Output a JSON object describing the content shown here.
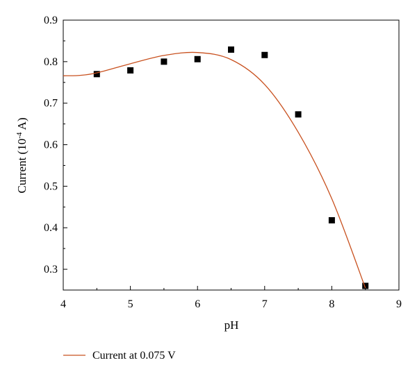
{
  "chart_data": {
    "type": "scatter",
    "xlabel": "pH",
    "ylabel_main": "Current (10",
    "ylabel_exp": "-4",
    "ylabel_tail": " A)",
    "xlim": [
      4,
      9
    ],
    "ylim": [
      0.25,
      0.9
    ],
    "x_ticks": [
      4,
      5,
      6,
      7,
      8,
      9
    ],
    "y_ticks": [
      0.3,
      0.4,
      0.5,
      0.6,
      0.7,
      0.8,
      0.9
    ],
    "grid": false,
    "legend_position": "bottom-left",
    "series": [
      {
        "kind": "markers",
        "color": "#000000",
        "x": [
          4.5,
          5.0,
          5.5,
          6.0,
          6.5,
          7.0,
          7.5,
          8.0,
          8.5
        ],
        "y": [
          0.77,
          0.779,
          0.8,
          0.806,
          0.829,
          0.816,
          0.673,
          0.418,
          0.26
        ]
      },
      {
        "kind": "line",
        "name": "Current at 0.075 V",
        "color": "#c8501e",
        "x": [
          4.0,
          4.25,
          4.5,
          5.0,
          5.5,
          6.0,
          6.5,
          7.0,
          7.5,
          8.0,
          8.5
        ],
        "y": [
          0.766,
          0.767,
          0.773,
          0.795,
          0.815,
          0.822,
          0.805,
          0.745,
          0.63,
          0.47,
          0.255
        ]
      }
    ]
  }
}
